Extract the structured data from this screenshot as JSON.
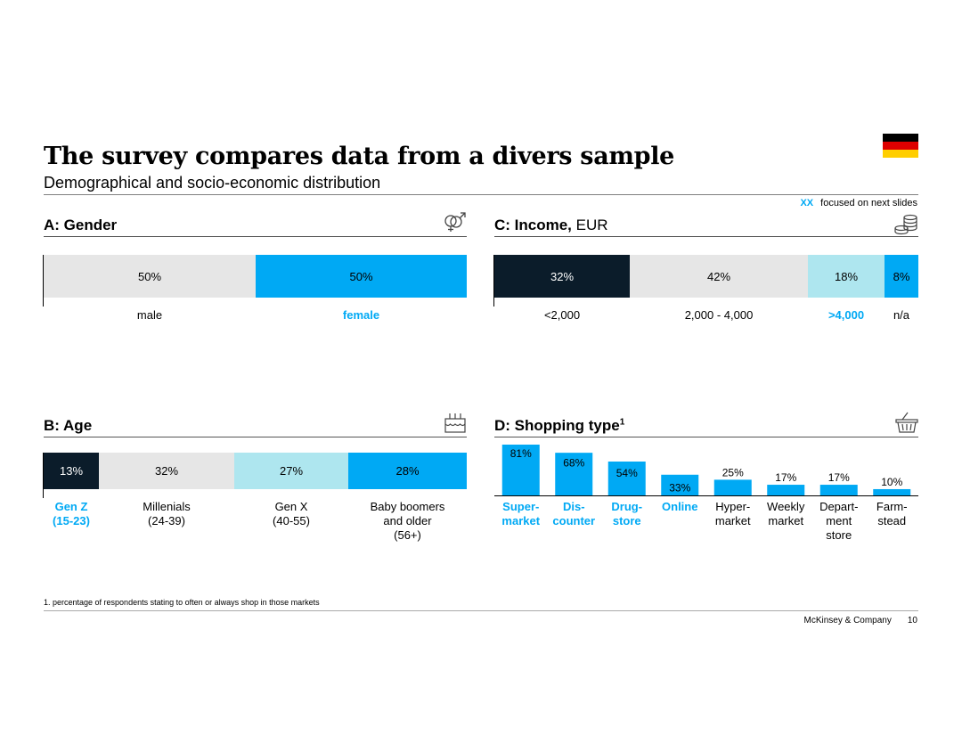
{
  "header": {
    "title": "The survey compares data from a divers sample",
    "subtitle": "Demographical and socio-economic distribution"
  },
  "legend": {
    "marker": "XX",
    "text": "focused on next slides"
  },
  "colors": {
    "dark": "#0b1c2a",
    "light_gray": "#e6e6e6",
    "blue": "#00a9f4",
    "light_blue": "#aee6ef",
    "flag_black": "#000000",
    "flag_red": "#dd0000",
    "flag_gold": "#ffce00"
  },
  "icons": {
    "gender": "gender-symbols-icon",
    "income": "coin-stack-icon",
    "age": "birthday-cake-icon",
    "shopping": "shopping-basket-icon",
    "flag": "germany-flag-icon"
  },
  "sections": {
    "gender": {
      "title": "A: Gender"
    },
    "income": {
      "title": "C: Income,",
      "title_suffix": "EUR"
    },
    "age": {
      "title": "B: Age"
    },
    "shopping": {
      "title": "D: Shopping type",
      "title_sup": "1"
    }
  },
  "chart_data": [
    {
      "type": "bar",
      "orientation": "stacked-horizontal",
      "title": "A: Gender",
      "categories": [
        "male",
        "female"
      ],
      "values": [
        50,
        50
      ],
      "labels": [
        "50%",
        "50%"
      ],
      "colors": [
        "#e6e6e6",
        "#00a9f4"
      ],
      "highlight": [
        false,
        true
      ]
    },
    {
      "type": "bar",
      "orientation": "stacked-horizontal",
      "title": "C: Income, EUR",
      "categories": [
        "<2,000",
        "2,000 - 4,000",
        ">4,000",
        "n/a"
      ],
      "values": [
        32,
        42,
        18,
        8
      ],
      "labels": [
        "32%",
        "42%",
        "18%",
        "8%"
      ],
      "colors": [
        "#0b1c2a",
        "#e6e6e6",
        "#aee6ef",
        "#00a9f4"
      ],
      "highlight": [
        false,
        false,
        true,
        false
      ]
    },
    {
      "type": "bar",
      "orientation": "stacked-horizontal",
      "title": "B: Age",
      "categories": [
        "Gen Z\n(15-23)",
        "Millenials\n(24-39)",
        "Gen X\n(40-55)",
        "Baby boomers\nand older\n(56+)"
      ],
      "values": [
        13,
        32,
        27,
        28
      ],
      "labels": [
        "13%",
        "32%",
        "27%",
        "28%"
      ],
      "colors": [
        "#0b1c2a",
        "#e6e6e6",
        "#aee6ef",
        "#00a9f4"
      ],
      "highlight": [
        true,
        false,
        false,
        false
      ]
    },
    {
      "type": "bar",
      "orientation": "vertical",
      "title": "D: Shopping type",
      "categories": [
        "Super-\nmarket",
        "Dis-\ncounter",
        "Drug-\nstore",
        "Online",
        "Hyper-\nmarket",
        "Weekly\nmarket",
        "Depart-\nment\nstore",
        "Farm-\nstead"
      ],
      "values": [
        81,
        68,
        54,
        33,
        25,
        17,
        17,
        10
      ],
      "labels": [
        "81%",
        "68%",
        "54%",
        "33%",
        "25%",
        "17%",
        "17%",
        "10%"
      ],
      "color": "#00a9f4",
      "highlight": [
        true,
        true,
        true,
        true,
        false,
        false,
        false,
        false
      ]
    }
  ],
  "footnote": "1.   percentage of respondents stating to often or always shop in those markets",
  "footer": {
    "company": "McKinsey & Company",
    "page": "10"
  }
}
